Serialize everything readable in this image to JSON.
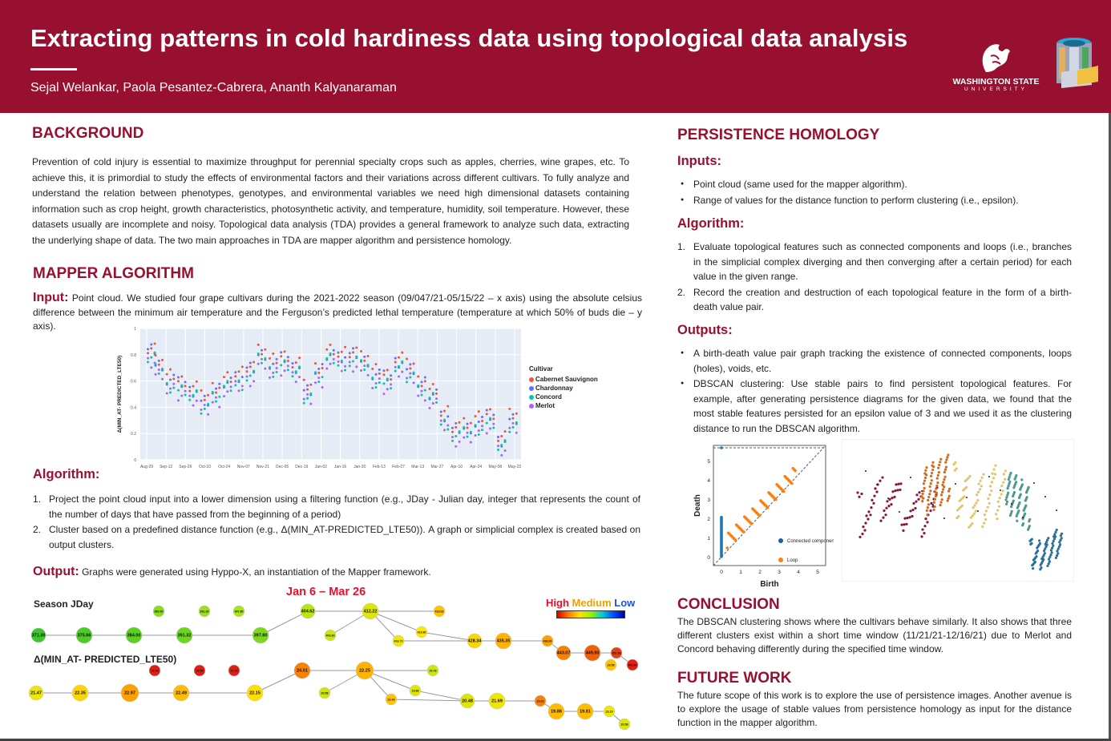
{
  "poster": {
    "title": "Extracting patterns in cold hardiness data using topological data analysis",
    "authors": "Sejal Welankar, Paola Pesantez-Cabrera, Ananth Kalyanaraman",
    "logo_name": "WASHINGTON STATE",
    "logo_university": "UNIVERSITY",
    "colors": {
      "banner": "#98102f",
      "heading": "#98102f"
    }
  },
  "background": {
    "heading": "BACKGROUND",
    "text": "Prevention of cold injury is essential to maximize throughput for perennial specialty crops such as apples, cherries, wine grapes, etc.  To achieve this, it is primordial to study the effects of environmental factors and their variations across different cultivars. To fully analyze and understand the relation between phenotypes, genotypes, and environmental variables we need high dimensional datasets containing information such as crop height, growth characteristics, photosynthetic activity, and temperature, humidity, soil temperature. However, these datasets usually are incomplete and noisy. Topological data analysis (TDA) provides a general framework to analyze such data, extracting the underlying shape of data. The two main approaches in TDA are mapper algorithm and persistence homology."
  },
  "mapper": {
    "heading": "MAPPER ALGORITHM",
    "input_label": "Input:",
    "input_text": "Point cloud. We studied four grape cultivars during the 2021-2022 season (09/047/21-05/15/22 – x axis) using the absolute celsius difference between the minimum air temperature and the Ferguson’s predicted lethal temperature (temperature at which 50% of buds die – y axis).",
    "algorithm_label": "Algorithm:",
    "algorithm_steps": [
      "Project the point cloud input into a lower dimension using a filtering function (e.g., JDay - Julian day, integer that represents the count of the number of days that have passed from the beginning of a period)",
      "Cluster based on a predefined distance function (e.g., Δ(MIN_AT-PREDICTED_LTE50)). A graph or simplicial complex is created based on output clusters."
    ],
    "output_label": "Output:",
    "output_text": "Graphs were generated using Hyppo-X, an instantiation of the Mapper framework.",
    "graph": {
      "row1_label": "Season JDay",
      "row2_label": "Δ(MIN_AT- PREDICTED_LTE50)",
      "range_label": "Jan 6 – Mar 26",
      "scale_high": "High",
      "scale_medium": "Medium",
      "scale_low": "Low",
      "row1_nodes": [
        "371.30",
        "375.66",
        "384.00",
        "391.32",
        "397.80",
        "380.00",
        "391.30",
        "397.80",
        "404.62",
        "403.66",
        "412.22",
        "416.73",
        "419.80",
        "428.34",
        "418.02",
        "435.35",
        "438.00",
        "443.07",
        "449.90",
        "452.38",
        "455.50"
      ],
      "row2_nodes": [
        "21.47",
        "22.35",
        "22.97",
        "22.49",
        "22.15",
        "23.49",
        "23.58",
        "23.79",
        "24.01",
        "20.58",
        "22.25",
        "22.49",
        "19.86",
        "20.78",
        "20.48",
        "21.69",
        "23.63",
        "19.86",
        "19.81",
        "23.19",
        "20.58",
        "23.59"
      ]
    }
  },
  "chart_data": {
    "type": "scatter",
    "title": "",
    "xlabel": "",
    "ylabel": "Δ(MIN_AT- PREDICTED_LTE50)",
    "x_ticks": [
      "Aug-29",
      "Sep-12",
      "Sep-26",
      "Oct-10",
      "Oct-24",
      "Nov-07",
      "Nov-21",
      "Dec-05",
      "Dec-19",
      "Jan-02",
      "Jan-16",
      "Jan-30",
      "Feb-13",
      "Feb-27",
      "Mar-13",
      "Mar-27",
      "Apr-10",
      "Apr-24",
      "May-08",
      "May-22"
    ],
    "y_ticks": [
      "0",
      "0.2",
      "0.4",
      "0.6",
      "0.8",
      "1"
    ],
    "ylim": [
      0,
      1
    ],
    "legend_title": "Cultivar",
    "series": [
      {
        "name": "Cabernet Sauvignon",
        "color": "#ef553b"
      },
      {
        "name": "Chardonnay",
        "color": "#636efa"
      },
      {
        "name": "Concord",
        "color": "#00cc96"
      },
      {
        "name": "Merlot",
        "color": "#ab63fa"
      }
    ]
  },
  "persistence": {
    "heading": "PERSISTENCE HOMOLOGY",
    "inputs_label": "Inputs:",
    "inputs": [
      "Point cloud (same used for the mapper algorithm).",
      "Range of values for the distance function to perform clustering (i.e., epsilon)."
    ],
    "algorithm_label": "Algorithm:",
    "algorithm_steps": [
      "Evaluate topological features such as connected components and loops (i.e., branches in the simplicial complex diverging and then converging after a certain period) for each value in the given range.",
      "Record the creation and destruction of each topological feature in the form of a birth-death value pair."
    ],
    "outputs_label": "Outputs:",
    "outputs": [
      "A birth-death value pair graph tracking the existence of connected components, loops (holes), voids,  etc.",
      "DBSCAN clustering: Use stable pairs to find persistent topological features. For example, after generating persistence diagrams for the given data, we found that the most stable features persisted for an epsilon value of 3 and we used it as the clustering distance to run the DBSCAN algorithm."
    ],
    "diagram": {
      "xlabel": "Birth",
      "ylabel": "Death",
      "x_ticks": [
        "0",
        "1",
        "2",
        "3",
        "4",
        "5"
      ],
      "y_ticks": [
        "0",
        "1",
        "2",
        "3",
        "4",
        "5"
      ],
      "legend": [
        "Connected component",
        "Loop"
      ]
    }
  },
  "conclusion": {
    "heading": "CONCLUSION",
    "text": "The DBSCAN clustering shows where the cultivars behave similarly. It also shows that three different clusters exist within a short time window (11/21/21-12/16/21) due to Merlot and Concord behaving differently during the specified time window."
  },
  "future": {
    "heading": "FUTURE WORK",
    "text": "The future scope of this work is to explore the use of persistence images. Another avenue is to explore the usage of stable values from persistence homology as input for the distance function in the  mapper algorithm."
  }
}
